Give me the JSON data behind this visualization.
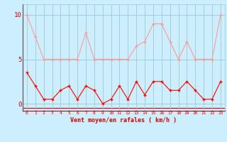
{
  "x": [
    0,
    1,
    2,
    3,
    4,
    5,
    6,
    7,
    8,
    9,
    10,
    11,
    12,
    13,
    14,
    15,
    16,
    17,
    18,
    19,
    20,
    21,
    22,
    23
  ],
  "y_moyen": [
    3.5,
    2.0,
    0.5,
    0.5,
    1.5,
    2.0,
    0.5,
    2.0,
    1.5,
    0.0,
    0.5,
    2.0,
    0.5,
    2.5,
    1.0,
    2.5,
    2.5,
    1.5,
    1.5,
    2.5,
    1.5,
    0.5,
    0.5,
    2.5
  ],
  "y_rafales": [
    10.0,
    7.5,
    5.0,
    5.0,
    5.0,
    5.0,
    5.0,
    8.0,
    5.0,
    5.0,
    5.0,
    5.0,
    5.0,
    6.5,
    7.0,
    9.0,
    9.0,
    7.0,
    5.0,
    7.0,
    5.0,
    5.0,
    5.0,
    10.0
  ],
  "color_moyen": "#ff0000",
  "color_rafales": "#ff9999",
  "bg_color": "#cceeff",
  "grid_color": "#99cccc",
  "xlabel": "Vent moyen/en rafales ( km/h )",
  "yticks": [
    0,
    5,
    10
  ],
  "xticks": [
    0,
    1,
    2,
    3,
    4,
    5,
    6,
    7,
    8,
    9,
    10,
    11,
    12,
    13,
    14,
    15,
    16,
    17,
    18,
    19,
    20,
    21,
    22,
    23
  ],
  "ylim": [
    -0.8,
    11.2
  ],
  "xlim": [
    -0.5,
    23.5
  ],
  "axis_color": "#cc0000"
}
